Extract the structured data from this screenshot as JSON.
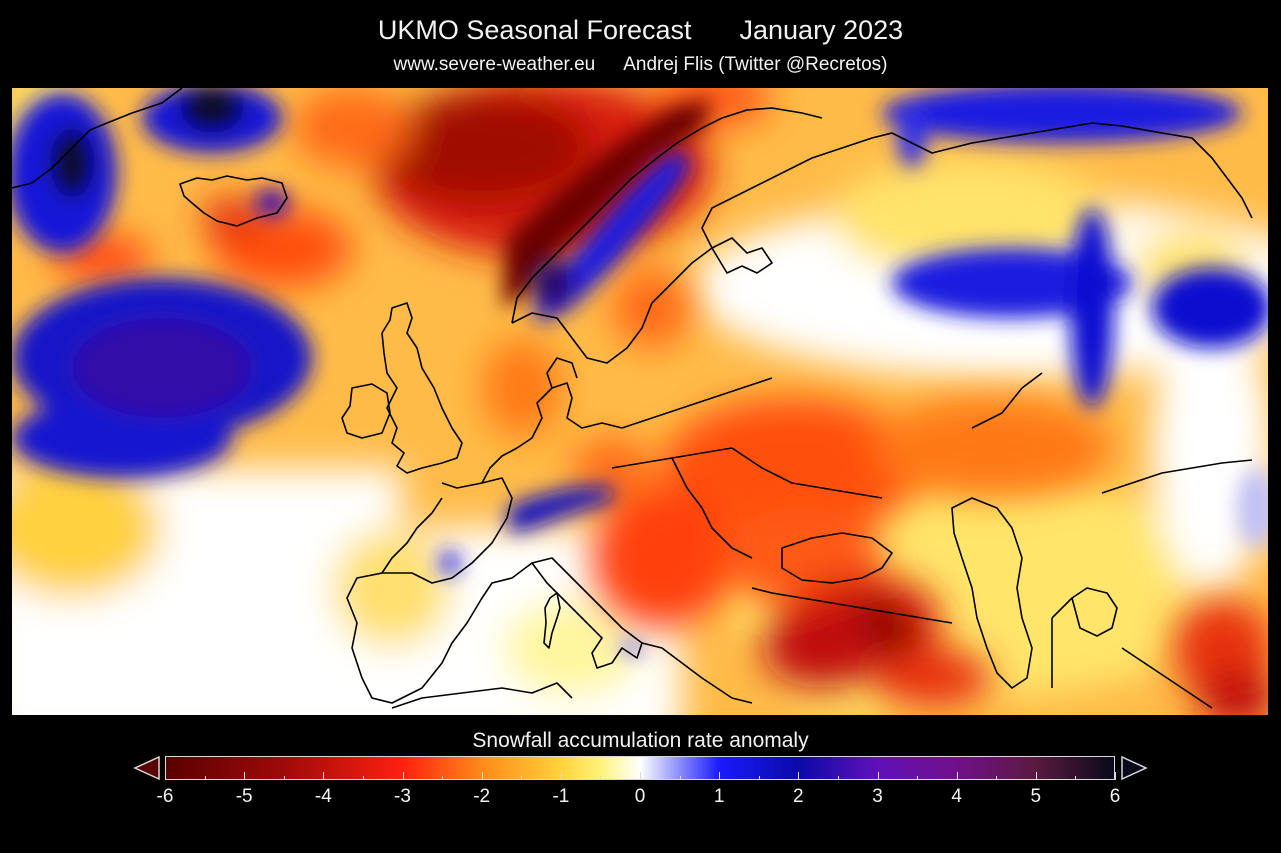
{
  "header": {
    "title": "UKMO Seasonal Forecast",
    "period": "January 2023",
    "website": "www.severe-weather.eu",
    "author": "Andrej Flis (Twitter @Recretos)"
  },
  "map": {
    "variable": "Snowfall accumulation rate anomaly",
    "region": "Europe"
  },
  "colorbar": {
    "label": "Snowfall accumulation rate anomaly",
    "min": -6,
    "max": 6,
    "tick_labels": [
      "-6",
      "-5",
      "-4",
      "-3",
      "-2",
      "-1",
      "0",
      "1",
      "2",
      "3",
      "4",
      "5",
      "6"
    ],
    "minor_step": 0.5,
    "extend": "both",
    "colors": {
      "neg6": "#5a0000",
      "neg4_5": "#a00a0a",
      "neg3": "#ff2010",
      "neg2": "#ff8a1a",
      "neg1": "#ffd23a",
      "neg0_5": "#fff27a",
      "zero": "#ffffff",
      "pos1": "#1a1aff",
      "pos2": "#0a0aa8",
      "pos3": "#6010b8",
      "pos4": "#70108a",
      "pos5": "#5a1a40",
      "pos6": "#0a0a1a"
    }
  }
}
